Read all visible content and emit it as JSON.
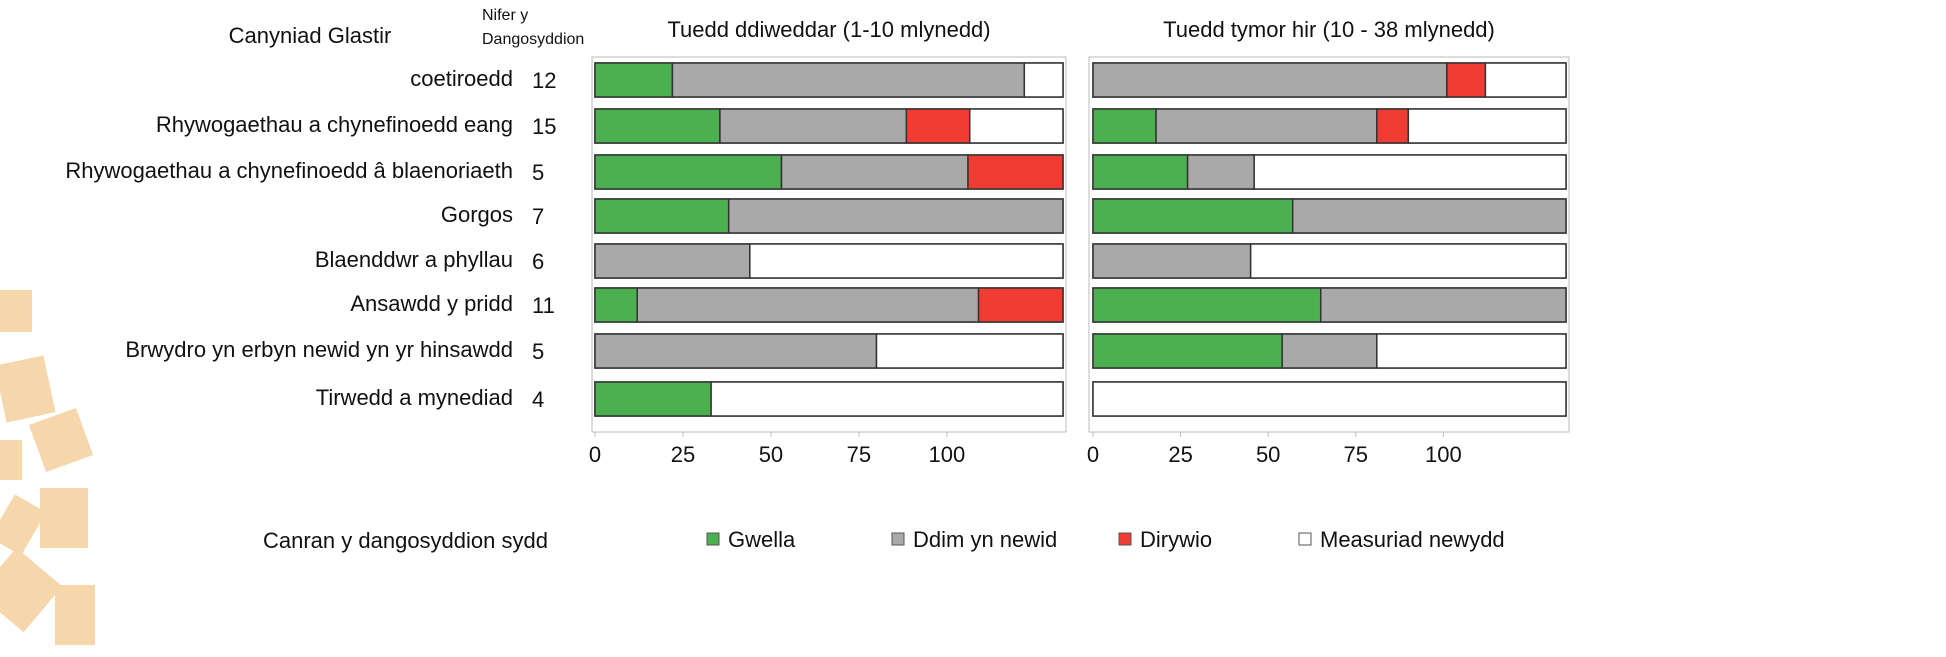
{
  "chart_data": [
    {
      "type": "stacked-barh",
      "category_heading": "Canyniad Glastir",
      "count_heading": [
        "Nifer y",
        "Dangosyddion"
      ],
      "title": "Tuedd ddiweddar (1-10 mlynedd)",
      "categories": [
        "coetiroedd",
        "Rhywogaethau a chynefinoedd eang",
        "Rhywogaethau a chynefinoedd â blaenoriaeth",
        "Gorgos",
        "Blaenddwr a phyllau",
        "Ansawdd y pridd",
        "Brwydro yn erbyn newid yn yr hinsawdd",
        "Tirwedd a mynediad"
      ],
      "counts": [
        12,
        15,
        5,
        7,
        6,
        11,
        5,
        4
      ],
      "xlim": [
        0,
        133
      ],
      "xticks": [
        0,
        25,
        50,
        75,
        100
      ],
      "legend_title": "Canran y dangosyddion sydd",
      "series": [
        {
          "name": "Gwella",
          "color": "#4caf50",
          "values": [
            22,
            35.5,
            53,
            38,
            0,
            12,
            0,
            33
          ]
        },
        {
          "name": "Ddim yn newid",
          "color": "#a9a9a9",
          "values": [
            100,
            53,
            53,
            95,
            44,
            97,
            80,
            0
          ]
        },
        {
          "name": "Dirywio",
          "color": "#f03c32",
          "values": [
            0,
            18,
            27,
            0,
            0,
            24,
            0,
            0
          ]
        },
        {
          "name": "Measuriad newydd",
          "color": "#ffffff",
          "values": [
            11,
            26.5,
            0,
            0,
            89,
            0,
            53,
            100
          ]
        }
      ]
    },
    {
      "type": "stacked-barh",
      "title": "Tuedd tymor hir (10 - 38 mlynedd)",
      "xlim": [
        0,
        135
      ],
      "xticks": [
        0,
        25,
        50,
        75,
        100
      ],
      "series": [
        {
          "color": "#4caf50",
          "values": [
            0,
            18,
            27,
            57,
            0,
            65,
            54,
            0
          ]
        },
        {
          "color": "#a9a9a9",
          "values": [
            101,
            63,
            19,
            78,
            45,
            70,
            27,
            0
          ]
        },
        {
          "color": "#f03c32",
          "values": [
            11,
            9,
            0,
            0,
            0,
            0,
            0,
            0
          ]
        },
        {
          "color": "#ffffff",
          "values": [
            23,
            45,
            89,
            0,
            90,
            0,
            54,
            135
          ]
        }
      ]
    }
  ]
}
